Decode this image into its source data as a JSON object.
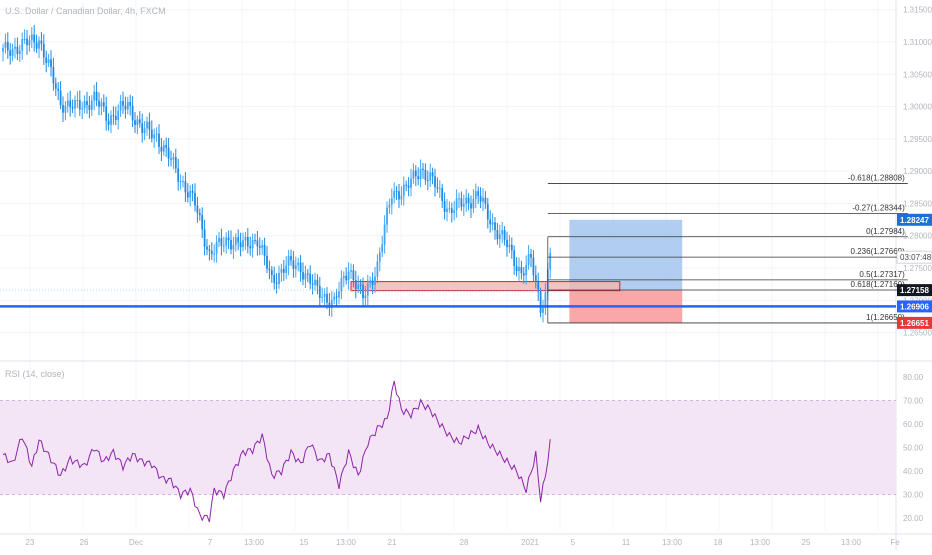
{
  "header": {
    "symbol_line": "U.S. Dollar / Canadian Dollar, 4h, FXCM"
  },
  "rsi": {
    "label": "RSI (14, close)",
    "ticks": [
      "80.00",
      "70.00",
      "60.00",
      "50.00",
      "40.00",
      "30.00",
      "20.00"
    ]
  },
  "price_axis": {
    "ticks": [
      "1.31500",
      "1.31000",
      "1.30500",
      "1.30000",
      "1.29500",
      "1.29000",
      "1.28500",
      "1.28000",
      "1.27500",
      "1.27000",
      "1.26500"
    ]
  },
  "price_tags": {
    "take_profit": "1.28247",
    "countdown": "03:07:48",
    "current": "1.27158",
    "support": "1.26906",
    "stop_loss": "1.26651"
  },
  "colors": {
    "bull": "#42a5f5",
    "bear": "#1e88e5",
    "support_line": "#2962ff",
    "profit_zone": "#a9c8ee",
    "loss_zone": "#f8a3a3",
    "rsi_line": "#8e24aa",
    "rsi_band": "#f3e5f5",
    "zone_rect": "#f4b4b4",
    "current_tag": "#131722",
    "tp_tag": "#1e70d4",
    "sl_tag": "#e53935"
  },
  "fibonacci": {
    "levels": [
      {
        "label": "-0.618(1.28808)",
        "value": 1.28808
      },
      {
        "label": "-0.27(1.28344)",
        "value": 1.28344
      },
      {
        "label": "0(1.27984)",
        "value": 1.27984
      },
      {
        "label": "0.236(1.27669)",
        "value": 1.27669
      },
      {
        "label": "0.5(1.27317)",
        "value": 1.27317
      },
      {
        "label": "0.618(1.27160)",
        "value": 1.2716
      },
      {
        "label": "1(1.26650)",
        "value": 1.2665
      }
    ]
  },
  "x_axis": {
    "labels": [
      "23",
      "26",
      "Dec",
      "7",
      "13:00",
      "15",
      "13:00",
      "21",
      "28",
      "2021",
      "5",
      "11",
      "13:00",
      "18",
      "13:00",
      "25",
      "13:00",
      "Fe"
    ]
  },
  "chart_data": [
    {
      "type": "candlestick",
      "title": "U.S. Dollar / Canadian Dollar, 4h, FXCM",
      "ylim": [
        1.262,
        1.3165
      ],
      "yticks": [
        1.315,
        1.31,
        1.305,
        1.3,
        1.295,
        1.29,
        1.285,
        1.28,
        1.275,
        1.27,
        1.265
      ],
      "anchors": [
        {
          "bar": 0,
          "close": 1.3085
        },
        {
          "bar": 8,
          "close": 1.3095
        },
        {
          "bar": 15,
          "close": 1.3105
        },
        {
          "bar": 18,
          "close": 1.3072
        },
        {
          "bar": 24,
          "close": 1.3007
        },
        {
          "bar": 30,
          "close": 1.2998
        },
        {
          "bar": 38,
          "close": 1.3012
        },
        {
          "bar": 44,
          "close": 1.2982
        },
        {
          "bar": 52,
          "close": 1.3002
        },
        {
          "bar": 58,
          "close": 1.2965
        },
        {
          "bar": 64,
          "close": 1.2955
        },
        {
          "bar": 72,
          "close": 1.2902
        },
        {
          "bar": 80,
          "close": 1.2848
        },
        {
          "bar": 86,
          "close": 1.2772
        },
        {
          "bar": 94,
          "close": 1.2795
        },
        {
          "bar": 100,
          "close": 1.2784
        },
        {
          "bar": 106,
          "close": 1.2796
        },
        {
          "bar": 112,
          "close": 1.273
        },
        {
          "bar": 118,
          "close": 1.2755
        },
        {
          "bar": 124,
          "close": 1.2752
        },
        {
          "bar": 130,
          "close": 1.2718
        },
        {
          "bar": 138,
          "close": 1.2695
        },
        {
          "bar": 144,
          "close": 1.2752
        },
        {
          "bar": 150,
          "close": 1.2702
        },
        {
          "bar": 156,
          "close": 1.2755
        },
        {
          "bar": 162,
          "close": 1.2866
        },
        {
          "bar": 168,
          "close": 1.2872
        },
        {
          "bar": 174,
          "close": 1.2905
        },
        {
          "bar": 180,
          "close": 1.2878
        },
        {
          "bar": 186,
          "close": 1.2838
        },
        {
          "bar": 192,
          "close": 1.2852
        },
        {
          "bar": 198,
          "close": 1.2862
        },
        {
          "bar": 204,
          "close": 1.2818
        },
        {
          "bar": 210,
          "close": 1.2785
        },
        {
          "bar": 216,
          "close": 1.2742
        },
        {
          "bar": 220,
          "close": 1.2762
        },
        {
          "bar": 224,
          "close": 1.2692
        },
        {
          "bar": 226,
          "close": 1.2708
        },
        {
          "bar": 228,
          "close": 1.2778
        }
      ],
      "support_level": 1.26906,
      "current_price": 1.27158,
      "zone": {
        "from_bar": 145,
        "to_bar": 257,
        "low": 1.2715,
        "high": 1.2729
      },
      "position": {
        "from_bar": 236,
        "to_bar": 283,
        "entry": 1.27158,
        "target": 1.28247,
        "stop": 1.26651
      },
      "fib_span": {
        "from_bar": 227,
        "to_bar": 377
      }
    },
    {
      "type": "line",
      "title": "RSI (14, close)",
      "ylim": [
        15,
        85
      ],
      "band": [
        30,
        70
      ],
      "yticks": [
        80,
        70,
        60,
        50,
        40,
        30,
        20
      ],
      "anchors": [
        {
          "bar": 0,
          "value": 47
        },
        {
          "bar": 4,
          "value": 43
        },
        {
          "bar": 8,
          "value": 55
        },
        {
          "bar": 12,
          "value": 42
        },
        {
          "bar": 15,
          "value": 53
        },
        {
          "bar": 20,
          "value": 45
        },
        {
          "bar": 24,
          "value": 38
        },
        {
          "bar": 28,
          "value": 45
        },
        {
          "bar": 34,
          "value": 42
        },
        {
          "bar": 38,
          "value": 50
        },
        {
          "bar": 42,
          "value": 44
        },
        {
          "bar": 46,
          "value": 48
        },
        {
          "bar": 50,
          "value": 42
        },
        {
          "bar": 54,
          "value": 47
        },
        {
          "bar": 58,
          "value": 44
        },
        {
          "bar": 62,
          "value": 43
        },
        {
          "bar": 66,
          "value": 37
        },
        {
          "bar": 70,
          "value": 36
        },
        {
          "bar": 74,
          "value": 30
        },
        {
          "bar": 78,
          "value": 32
        },
        {
          "bar": 82,
          "value": 21
        },
        {
          "bar": 86,
          "value": 20
        },
        {
          "bar": 88,
          "value": 32
        },
        {
          "bar": 92,
          "value": 30
        },
        {
          "bar": 96,
          "value": 40
        },
        {
          "bar": 100,
          "value": 48
        },
        {
          "bar": 104,
          "value": 49
        },
        {
          "bar": 108,
          "value": 55
        },
        {
          "bar": 112,
          "value": 38
        },
        {
          "bar": 116,
          "value": 40
        },
        {
          "bar": 120,
          "value": 48
        },
        {
          "bar": 124,
          "value": 43
        },
        {
          "bar": 128,
          "value": 52
        },
        {
          "bar": 132,
          "value": 44
        },
        {
          "bar": 136,
          "value": 47
        },
        {
          "bar": 140,
          "value": 34
        },
        {
          "bar": 144,
          "value": 48
        },
        {
          "bar": 148,
          "value": 38
        },
        {
          "bar": 152,
          "value": 52
        },
        {
          "bar": 156,
          "value": 58
        },
        {
          "bar": 160,
          "value": 62
        },
        {
          "bar": 163,
          "value": 78
        },
        {
          "bar": 166,
          "value": 66
        },
        {
          "bar": 170,
          "value": 64
        },
        {
          "bar": 174,
          "value": 69
        },
        {
          "bar": 178,
          "value": 66
        },
        {
          "bar": 182,
          "value": 60
        },
        {
          "bar": 186,
          "value": 55
        },
        {
          "bar": 190,
          "value": 52
        },
        {
          "bar": 194,
          "value": 55
        },
        {
          "bar": 198,
          "value": 58
        },
        {
          "bar": 202,
          "value": 52
        },
        {
          "bar": 206,
          "value": 48
        },
        {
          "bar": 210,
          "value": 44
        },
        {
          "bar": 214,
          "value": 40
        },
        {
          "bar": 218,
          "value": 32
        },
        {
          "bar": 222,
          "value": 47
        },
        {
          "bar": 224,
          "value": 28
        },
        {
          "bar": 226,
          "value": 38
        },
        {
          "bar": 228,
          "value": 52
        }
      ]
    }
  ]
}
